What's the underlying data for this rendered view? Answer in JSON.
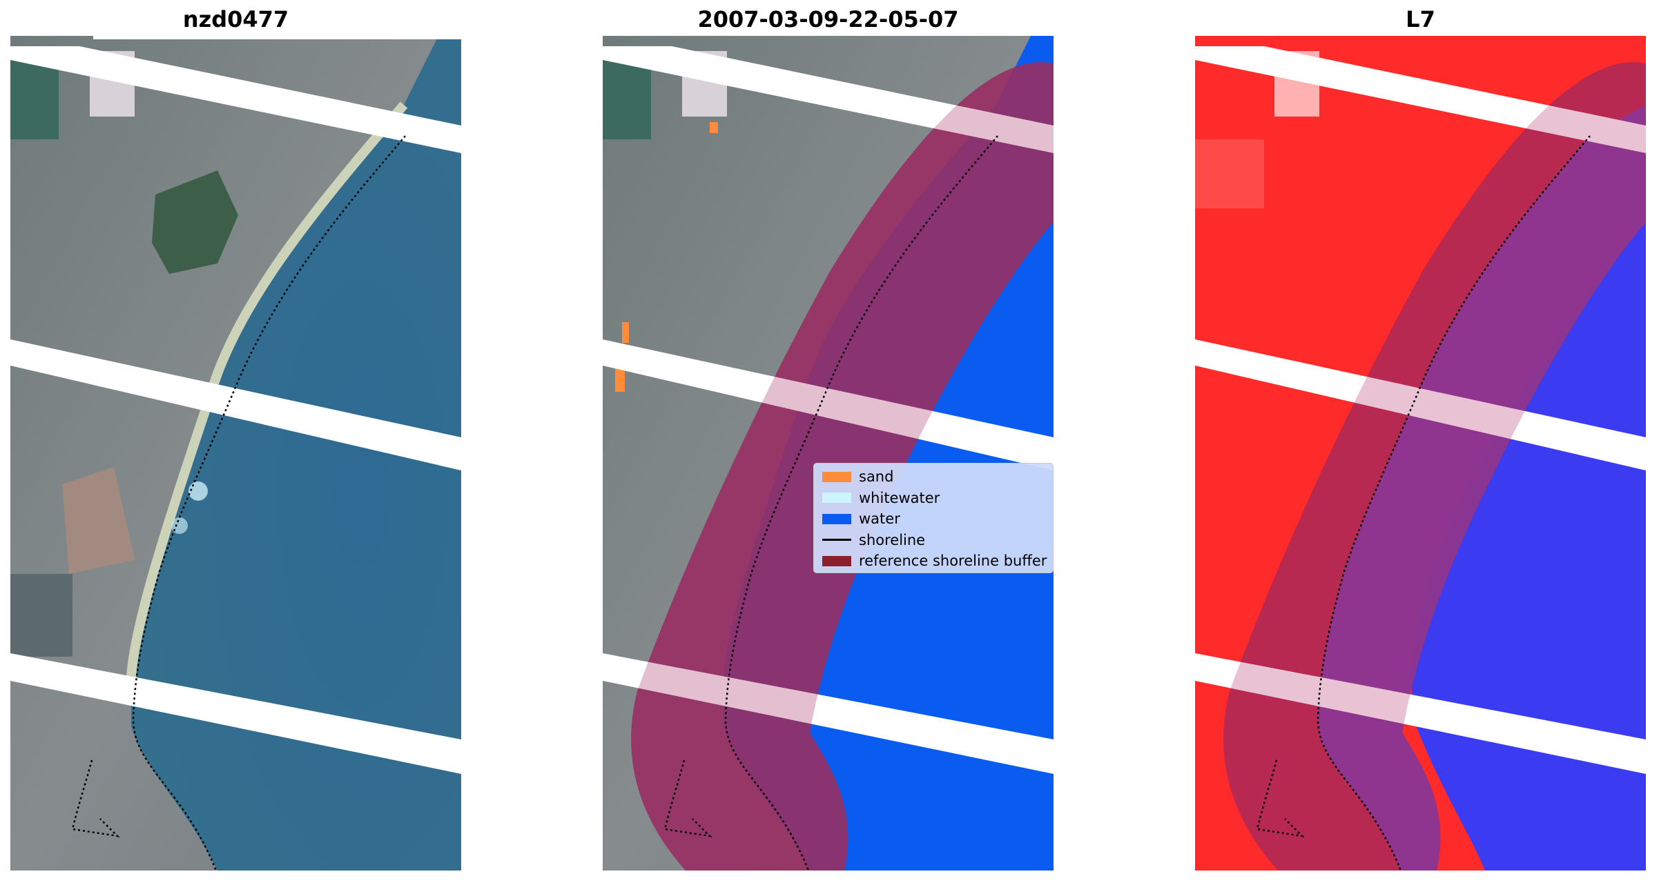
{
  "titles": {
    "left": "nzd0477",
    "middle": "2007-03-09-22-05-07",
    "right": "L7"
  },
  "legend": {
    "items": [
      {
        "label": "sand",
        "color": "#ff8c3a",
        "kind": "patch"
      },
      {
        "label": "whitewater",
        "color": "#ccf5ff",
        "kind": "patch"
      },
      {
        "label": "water",
        "color": "#0a5cf0",
        "kind": "patch"
      },
      {
        "label": "shoreline",
        "color": "#000000",
        "kind": "line"
      },
      {
        "label": "reference shoreline buffer",
        "color": "#8b1f2c",
        "kind": "patch"
      }
    ]
  },
  "colors": {
    "sea": "#2f6f98",
    "land": "#7c858a",
    "classified_water": "#0a5cf0",
    "buffer_overlay": "#8b1f56",
    "false_color_land": "#ff2a2a",
    "false_color_water": "#3b3bf2",
    "sand": "#ff8c3a"
  },
  "icons": [
    "shoreline-dotted-line",
    "scan-line-gap-stripes"
  ]
}
